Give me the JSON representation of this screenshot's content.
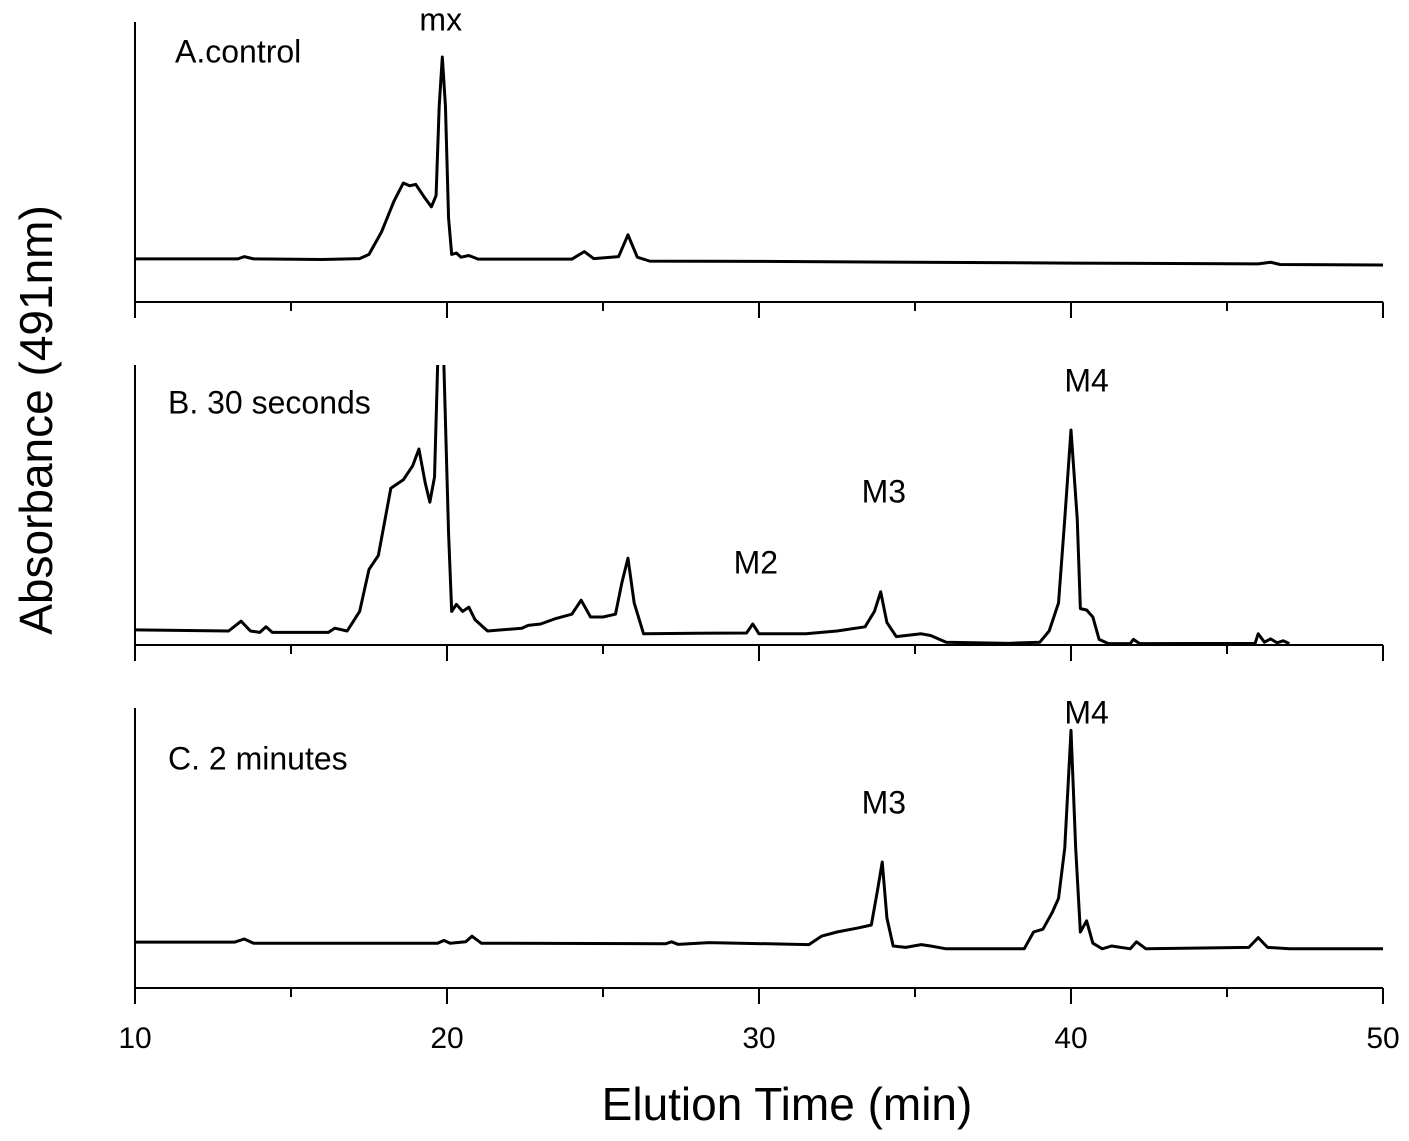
{
  "chart_data": [
    {
      "type": "line",
      "title": "A.control",
      "color": "#000000",
      "xlim": [
        10,
        50
      ],
      "xticks": [
        10,
        20,
        30,
        40,
        50
      ],
      "xminor_ticks": [
        15,
        25,
        35,
        45
      ],
      "show_xtick_labels": false,
      "ylim": [
        0,
        100
      ],
      "annotations": [
        {
          "text": "mx",
          "x": 19.8,
          "y": 100
        }
      ],
      "x": [
        10,
        13.3,
        13.5,
        13.8,
        16,
        17.2,
        17.5,
        17.9,
        18.3,
        18.6,
        18.8,
        19.0,
        19.3,
        19.5,
        19.65,
        19.75,
        19.85,
        19.95,
        20.05,
        20.15,
        20.3,
        20.45,
        20.7,
        21.0,
        24.0,
        24.4,
        24.7,
        25.5,
        25.8,
        26.1,
        26.5,
        30,
        40,
        46,
        46.4,
        46.7,
        50
      ],
      "values": [
        15.4,
        15.4,
        16.2,
        15.4,
        15.2,
        15.5,
        17,
        25,
        36,
        42.5,
        41.5,
        42,
        37,
        34,
        38,
        70,
        87.5,
        70,
        30,
        17,
        17.5,
        16,
        16.6,
        15.3,
        15.3,
        18,
        15.5,
        16.2,
        24,
        16,
        14.6,
        14.5,
        13.9,
        13.6,
        14.2,
        13.4,
        13.2
      ]
    },
    {
      "type": "line",
      "title": "B. 30 seconds",
      "color": "#000000",
      "ylabel": "Absorbance (491nm)",
      "xlim": [
        10,
        50
      ],
      "xticks": [
        10,
        20,
        30,
        40,
        50
      ],
      "xminor_ticks": [
        15,
        25,
        35,
        45
      ],
      "show_xtick_labels": false,
      "ylim": [
        0,
        100
      ],
      "annotations": [
        {
          "text": "M2",
          "x": 29.9,
          "y": 28.6
        },
        {
          "text": "M3",
          "x": 34.0,
          "y": 54
        },
        {
          "text": "M4",
          "x": 40.5,
          "y": 93.6
        }
      ],
      "x": [
        10,
        13.0,
        13.4,
        13.7,
        14.0,
        14.2,
        14.4,
        16.2,
        16.4,
        16.8,
        17.2,
        17.5,
        17.8,
        18.0,
        18.2,
        18.6,
        18.9,
        19.1,
        19.3,
        19.45,
        19.6,
        19.7,
        19.8,
        19.9,
        20.05,
        20.15,
        20.3,
        20.5,
        20.7,
        20.9,
        21.3,
        22.4,
        22.6,
        23.0,
        23.5,
        24.0,
        24.3,
        24.6,
        25.0,
        25.4,
        25.6,
        25.8,
        26.0,
        26.3,
        28,
        29.6,
        29.8,
        30.0,
        31.5,
        32.5,
        33.4,
        33.7,
        33.9,
        34.1,
        34.4,
        35.2,
        35.5,
        36,
        38,
        39.0,
        39.3,
        39.6,
        39.8,
        40.0,
        40.2,
        40.3,
        40.5,
        40.7,
        40.9,
        41.2,
        41.9,
        42.0,
        42.2,
        45.9,
        46.0,
        46.2,
        46.4,
        46.6,
        46.8,
        47
      ],
      "values": [
        5.4,
        5.0,
        8.5,
        5,
        4.5,
        6.5,
        4.5,
        4.5,
        6,
        5,
        12,
        27,
        32,
        44,
        56,
        59,
        64,
        70,
        58,
        51,
        60,
        100,
        120,
        100,
        40,
        12,
        14.5,
        12,
        13.5,
        9,
        5,
        6,
        7,
        7.5,
        9.5,
        11,
        16,
        10,
        10,
        11,
        22,
        31,
        15,
        4,
        4.2,
        4.3,
        7.5,
        4.0,
        4.0,
        5,
        6.5,
        12,
        19,
        8,
        3,
        4,
        3.4,
        1,
        0.6,
        1,
        5,
        15,
        45,
        76.8,
        45,
        13,
        12.5,
        10,
        2,
        0.5,
        0.5,
        2,
        0.5,
        0.6,
        4,
        1,
        2.2,
        0.8,
        1.5,
        0.5
      ]
    },
    {
      "type": "line",
      "title": "C. 2 minutes",
      "color": "#000000",
      "xlabel": "Elution Time (min)",
      "xlim": [
        10,
        50
      ],
      "xticks": [
        10,
        20,
        30,
        40,
        50
      ],
      "xminor_ticks": [
        15,
        25,
        35,
        45
      ],
      "show_xtick_labels": true,
      "ylim": [
        0,
        100
      ],
      "annotations": [
        {
          "text": "M3",
          "x": 34.0,
          "y": 65.4
        },
        {
          "text": "M4",
          "x": 40.5,
          "y": 97.5
        }
      ],
      "x": [
        10,
        13.2,
        13.5,
        13.8,
        19.7,
        19.9,
        20.1,
        20.6,
        20.8,
        21.1,
        27,
        27.2,
        27.4,
        28.4,
        31.6,
        32,
        32.5,
        33.2,
        33.6,
        33.8,
        33.95,
        34.1,
        34.3,
        34.7,
        35.2,
        35.5,
        36.0,
        38.5,
        38.8,
        39.1,
        39.4,
        39.6,
        39.8,
        40.0,
        40.15,
        40.3,
        40.5,
        40.7,
        41.0,
        41.3,
        41.9,
        42.1,
        42.4,
        45.7,
        46.0,
        46.3,
        47,
        50
      ],
      "values": [
        16.4,
        16.4,
        17.5,
        16,
        16,
        17,
        16,
        16.5,
        18.5,
        16,
        15.8,
        16.5,
        15.6,
        16.2,
        15.5,
        18.5,
        20,
        21.5,
        22.5,
        35,
        45,
        25,
        15,
        14.5,
        15.5,
        15,
        14,
        14,
        20,
        21,
        27,
        32,
        50,
        92,
        50,
        20,
        24,
        16,
        14,
        15,
        14,
        16.5,
        14,
        14.5,
        18,
        14.5,
        14,
        14
      ]
    }
  ]
}
